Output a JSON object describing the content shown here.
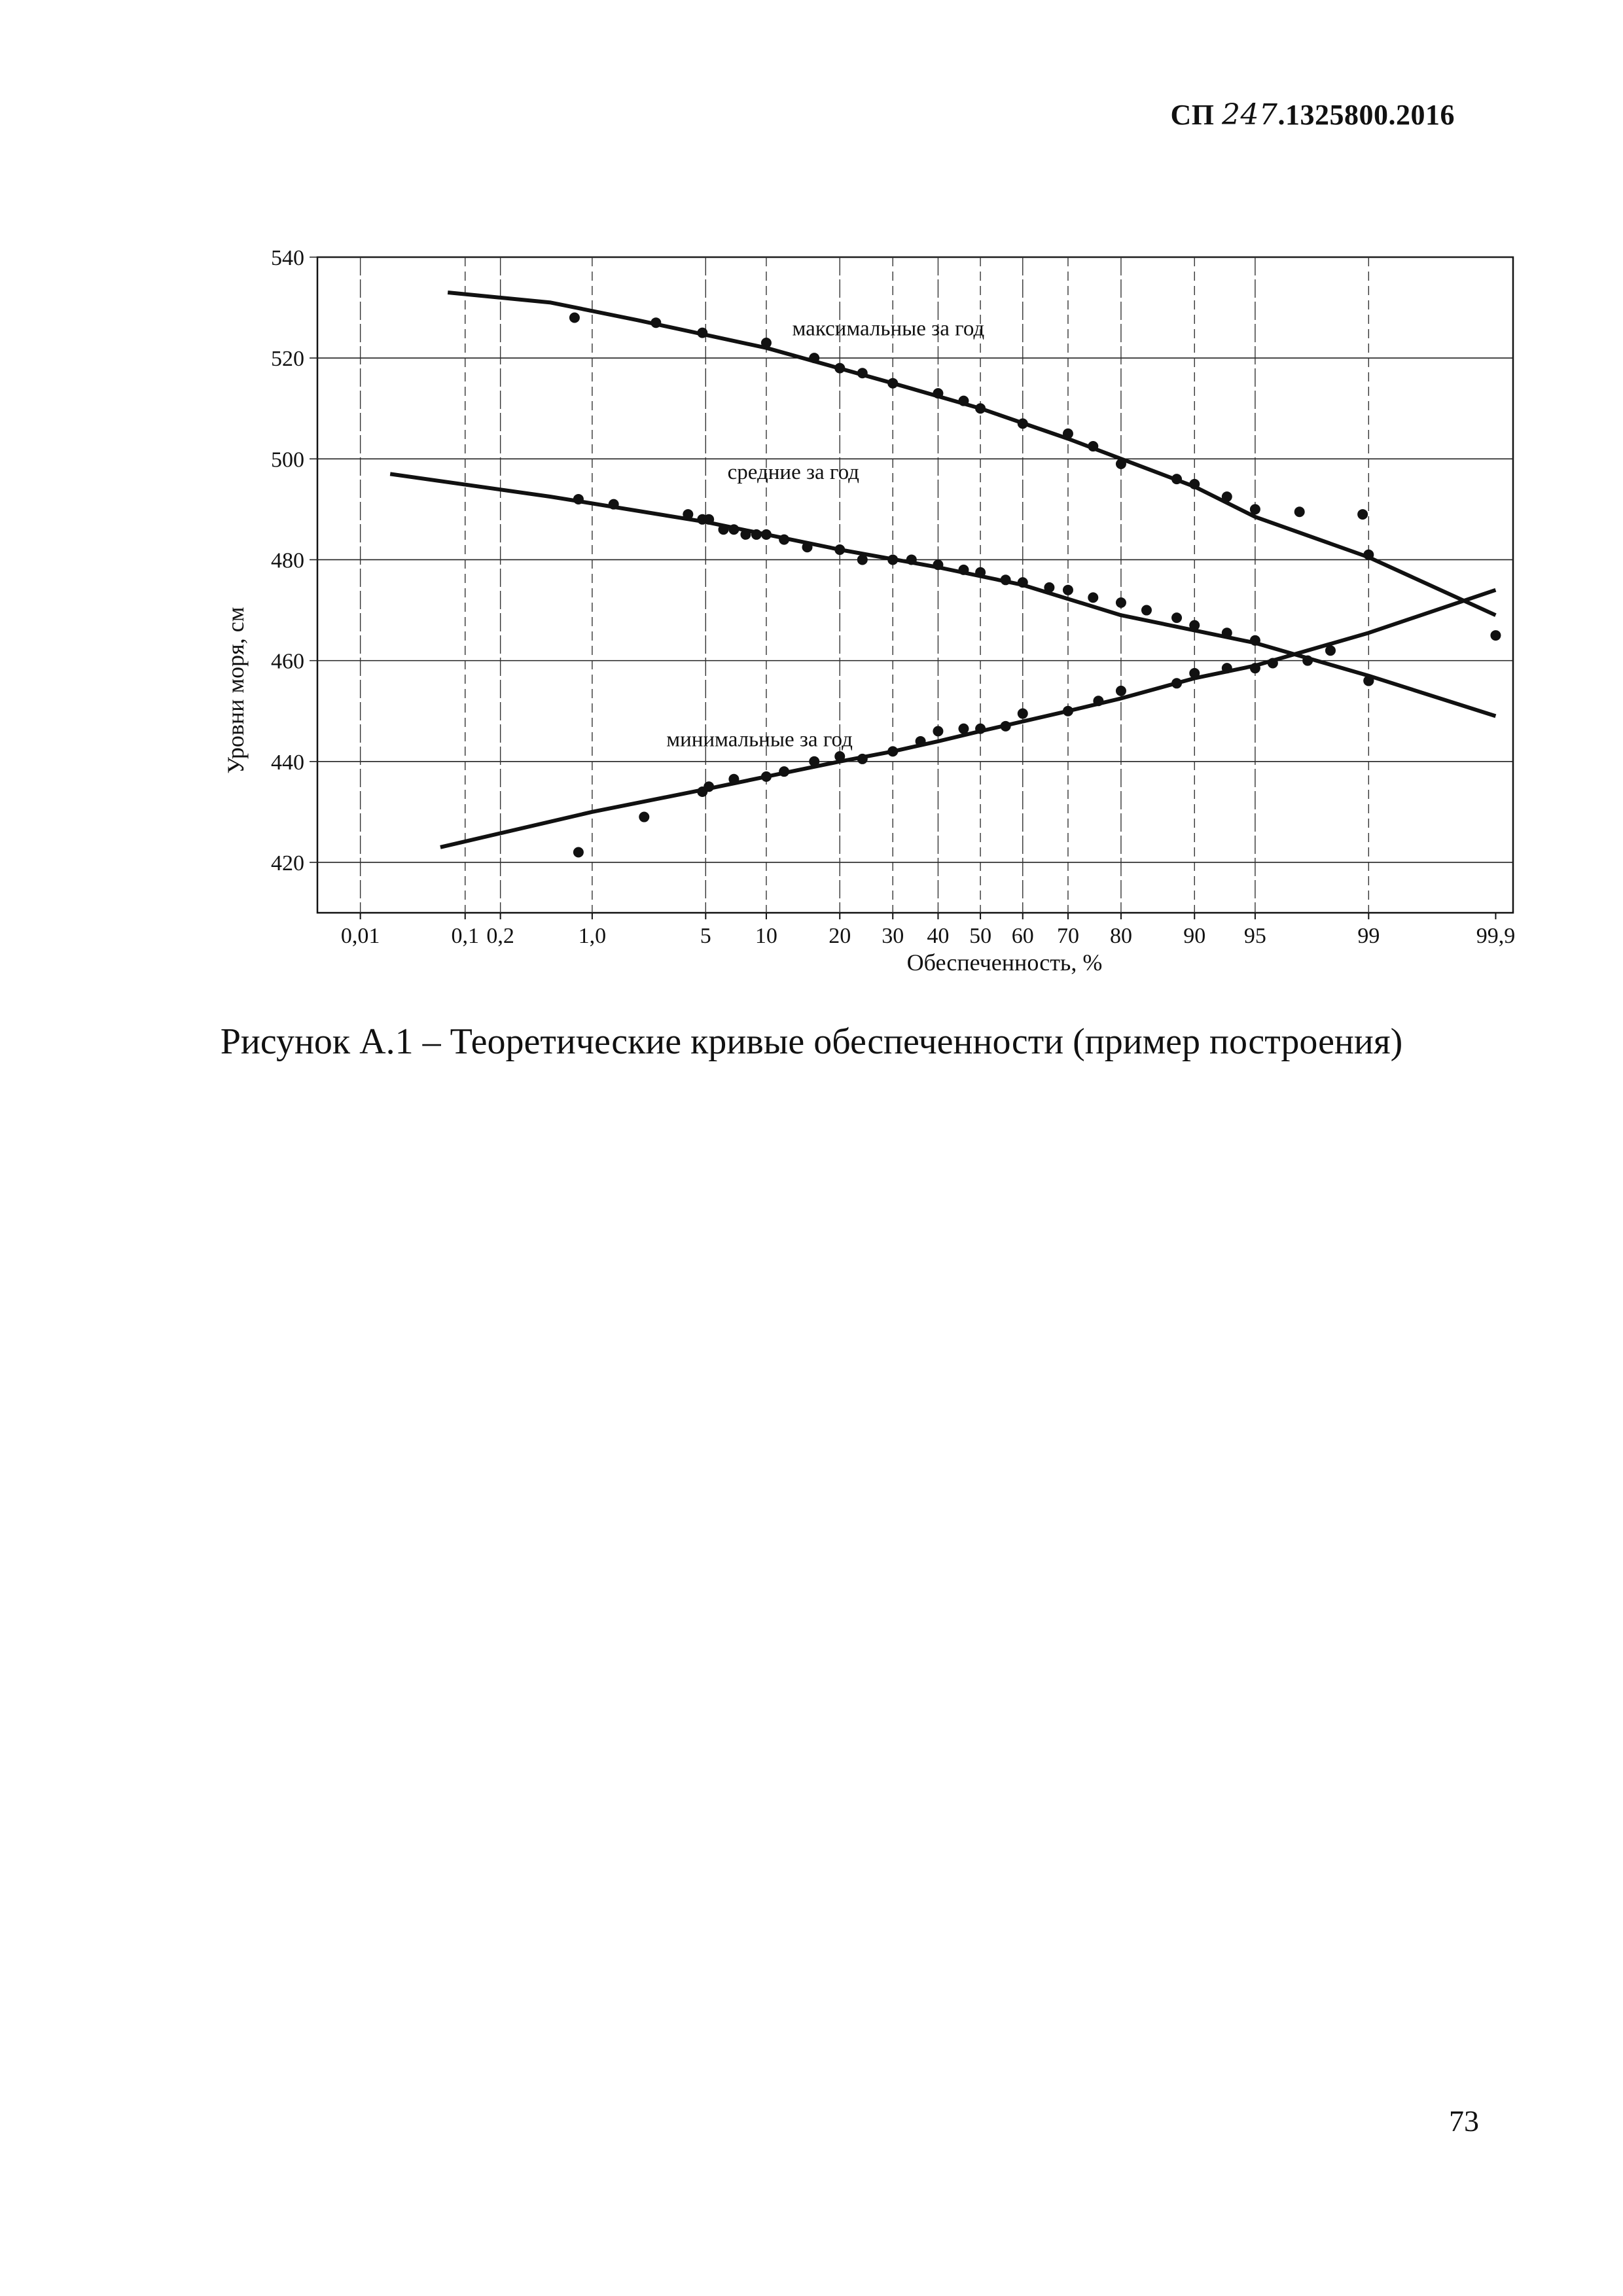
{
  "document": {
    "header_prefix": "СП",
    "header_handwritten": "247",
    "header_suffix": ".1325800.2016",
    "caption": "Рисунок А.1 – Теоретические кривые обеспеченности (пример построения)",
    "page_number": "73"
  },
  "chart_data": {
    "type": "scatter",
    "title": "",
    "xlabel": "Обеспеченность, %",
    "ylabel": "Уровни моря, см",
    "x_scale": "probability",
    "x_ticks": [
      "0,01",
      "0,1",
      "0,2",
      "1,0",
      "5",
      "10",
      "20",
      "30",
      "40",
      "50",
      "60",
      "70",
      "80",
      "90",
      "95",
      "99",
      "99,9"
    ],
    "x_tick_values": [
      0.01,
      0.1,
      0.2,
      1.0,
      5,
      10,
      20,
      30,
      40,
      50,
      60,
      70,
      80,
      90,
      95,
      99,
      99.9
    ],
    "y_ticks": [
      540,
      520,
      500,
      480,
      460,
      440,
      420
    ],
    "ylim": [
      410,
      540
    ],
    "grid": true,
    "series": [
      {
        "name": "максимальные за год",
        "color": "#111111",
        "curve": [
          [
            0.07,
            533
          ],
          [
            0.5,
            531
          ],
          [
            2,
            527.5
          ],
          [
            10,
            522
          ],
          [
            30,
            515
          ],
          [
            50,
            510
          ],
          [
            70,
            504
          ],
          [
            90,
            494.5
          ],
          [
            95,
            488.5
          ],
          [
            99,
            480.5
          ],
          [
            99.9,
            469
          ]
        ],
        "points": [
          [
            0.75,
            528
          ],
          [
            2.6,
            527
          ],
          [
            4.8,
            525
          ],
          [
            10,
            523
          ],
          [
            16,
            520
          ],
          [
            20,
            518
          ],
          [
            24,
            517
          ],
          [
            30,
            515
          ],
          [
            40,
            513
          ],
          [
            46,
            511.5
          ],
          [
            50,
            510
          ],
          [
            60,
            507
          ],
          [
            70,
            505
          ],
          [
            75,
            502.5
          ],
          [
            80,
            499
          ],
          [
            88,
            496
          ],
          [
            90,
            495
          ],
          [
            93,
            492.5
          ],
          [
            95,
            490
          ],
          [
            97.2,
            489.5
          ],
          [
            98.9,
            489
          ],
          [
            99,
            481
          ],
          [
            99.9,
            465
          ]
        ]
      },
      {
        "name": "средние за год",
        "color": "#111111",
        "curve": [
          [
            0.02,
            497
          ],
          [
            0.5,
            492.5
          ],
          [
            5,
            487.5
          ],
          [
            20,
            482
          ],
          [
            40,
            478.5
          ],
          [
            60,
            475
          ],
          [
            80,
            469
          ],
          [
            90,
            466
          ],
          [
            95,
            463.5
          ],
          [
            99,
            457
          ],
          [
            99.9,
            449
          ]
        ],
        "points": [
          [
            0.8,
            492
          ],
          [
            1.4,
            491
          ],
          [
            4,
            489
          ],
          [
            4.8,
            488
          ],
          [
            5.2,
            488
          ],
          [
            6.2,
            486
          ],
          [
            7,
            486
          ],
          [
            8,
            485
          ],
          [
            9,
            485
          ],
          [
            10,
            485
          ],
          [
            12,
            484
          ],
          [
            15,
            482.5
          ],
          [
            20,
            482
          ],
          [
            24,
            480
          ],
          [
            30,
            480
          ],
          [
            34,
            480
          ],
          [
            40,
            479
          ],
          [
            46,
            478
          ],
          [
            50,
            477.5
          ],
          [
            56,
            476
          ],
          [
            60,
            475.5
          ],
          [
            66,
            474.5
          ],
          [
            70,
            474
          ],
          [
            75,
            472.5
          ],
          [
            80,
            471.5
          ],
          [
            84,
            470
          ],
          [
            88,
            468.5
          ],
          [
            90,
            467
          ],
          [
            93,
            465.5
          ],
          [
            95,
            464
          ],
          [
            99,
            456
          ]
        ]
      },
      {
        "name": "минимальные за год",
        "color": "#111111",
        "curve": [
          [
            0.06,
            423
          ],
          [
            1,
            430
          ],
          [
            5,
            434.5
          ],
          [
            10,
            437
          ],
          [
            20,
            440
          ],
          [
            30,
            442
          ],
          [
            40,
            444
          ],
          [
            50,
            446
          ],
          [
            70,
            450
          ],
          [
            80,
            452.5
          ],
          [
            90,
            456.5
          ],
          [
            95,
            459
          ],
          [
            99,
            465.5
          ],
          [
            99.9,
            474
          ]
        ],
        "points": [
          [
            0.8,
            422
          ],
          [
            2.2,
            429
          ],
          [
            4.8,
            434
          ],
          [
            5.2,
            435
          ],
          [
            7,
            436.5
          ],
          [
            10,
            437
          ],
          [
            12,
            438
          ],
          [
            16,
            440
          ],
          [
            20,
            441
          ],
          [
            24,
            440.5
          ],
          [
            30,
            442
          ],
          [
            36,
            444
          ],
          [
            40,
            446
          ],
          [
            46,
            446.5
          ],
          [
            50,
            446.5
          ],
          [
            56,
            447
          ],
          [
            60,
            449.5
          ],
          [
            70,
            450
          ],
          [
            76,
            452
          ],
          [
            80,
            454
          ],
          [
            88,
            455.5
          ],
          [
            90,
            457.5
          ],
          [
            93,
            458.5
          ],
          [
            95,
            458.5
          ],
          [
            96,
            459.5
          ],
          [
            97.5,
            460
          ],
          [
            98.2,
            462
          ],
          [
            99,
            456
          ]
        ]
      }
    ]
  }
}
